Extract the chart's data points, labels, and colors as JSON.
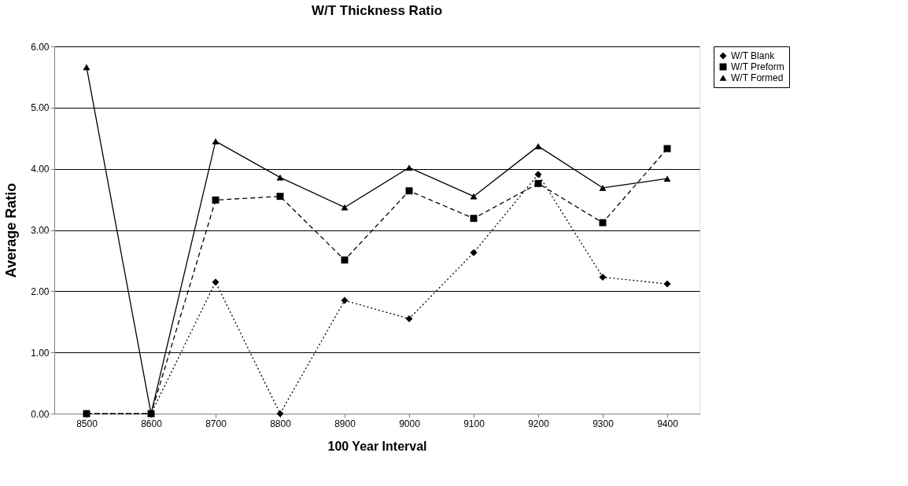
{
  "chart_data": {
    "type": "line",
    "title": "W/T Thickness Ratio",
    "xlabel": "100 Year Interval",
    "ylabel": "Average Ratio",
    "categories": [
      "8500",
      "8600",
      "8700",
      "8800",
      "8900",
      "9000",
      "9100",
      "9200",
      "9300",
      "9400"
    ],
    "series": [
      {
        "name": "W/T Blank",
        "color": "#000000",
        "marker": "diamond",
        "line_style": "dotted",
        "values": [
          0,
          0,
          2.15,
          0,
          1.85,
          1.55,
          2.63,
          3.91,
          2.23,
          2.12
        ]
      },
      {
        "name": "W/T Preform",
        "color": "#000000",
        "marker": "square",
        "line_style": "dashed",
        "values": [
          0,
          0,
          3.49,
          3.55,
          2.51,
          3.64,
          3.19,
          3.76,
          3.12,
          4.33
        ]
      },
      {
        "name": "W/T Formed",
        "color": "#000000",
        "marker": "triangle",
        "line_style": "solid",
        "values": [
          5.66,
          0,
          4.45,
          3.86,
          3.37,
          4.02,
          3.55,
          4.37,
          3.69,
          3.84
        ]
      }
    ],
    "ylim": [
      0,
      6
    ],
    "yticks": [
      {
        "value": 0,
        "label": "0.00"
      },
      {
        "value": 1,
        "label": "1.00"
      },
      {
        "value": 2,
        "label": "2.00"
      },
      {
        "value": 3,
        "label": "3.00"
      },
      {
        "value": 4,
        "label": "4.00"
      },
      {
        "value": 5,
        "label": "5.00"
      },
      {
        "value": 6,
        "label": "6.00"
      }
    ],
    "grid": "y",
    "legend": "right"
  }
}
